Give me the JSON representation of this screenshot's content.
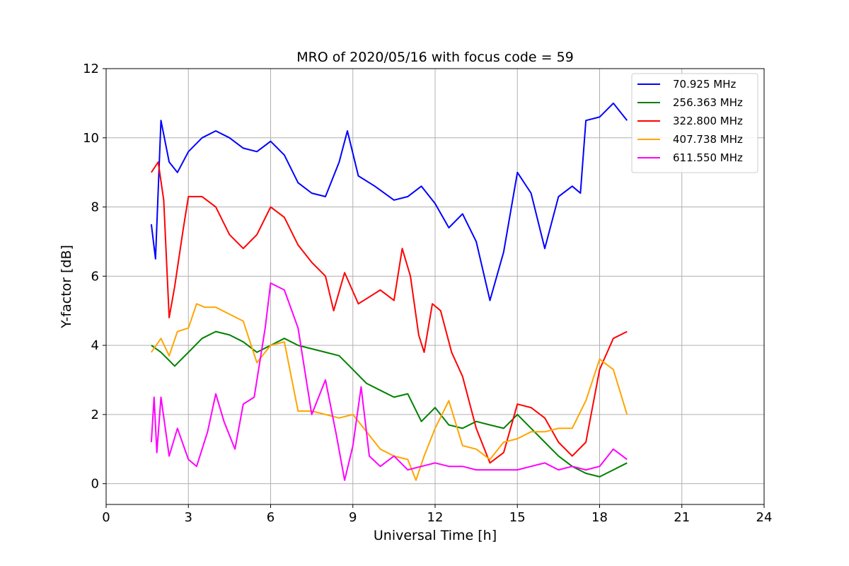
{
  "chart_data": {
    "type": "line",
    "title": "MRO of 2020/05/16 with focus code = 59",
    "xlabel": "Universal Time [h]",
    "ylabel": "Y-factor [dB]",
    "xlim": [
      0,
      24
    ],
    "ylim": [
      -0.6,
      12
    ],
    "xticks": [
      0,
      3,
      6,
      9,
      12,
      15,
      18,
      21,
      24
    ],
    "yticks": [
      0,
      2,
      4,
      6,
      8,
      10,
      12
    ],
    "grid": true,
    "legend_position": "top-right",
    "series": [
      {
        "name": " 70.925 MHz",
        "color": "#0000ff",
        "x": [
          1.65,
          1.8,
          2.0,
          2.3,
          2.6,
          3.0,
          3.5,
          4.0,
          4.5,
          5.0,
          5.5,
          6.0,
          6.5,
          7.0,
          7.5,
          8.0,
          8.5,
          8.8,
          9.2,
          9.8,
          10.5,
          11.0,
          11.5,
          12.0,
          12.5,
          13.0,
          13.5,
          14.0,
          14.5,
          15.0,
          15.5,
          16.0,
          16.5,
          17.0,
          17.3,
          17.5,
          18.0,
          18.5,
          19.0
        ],
        "y": [
          7.5,
          6.5,
          10.5,
          9.3,
          9.0,
          9.6,
          10.0,
          10.2,
          10.0,
          9.7,
          9.6,
          9.9,
          9.5,
          8.7,
          8.4,
          8.3,
          9.3,
          10.2,
          8.9,
          8.6,
          8.2,
          8.3,
          8.6,
          8.1,
          7.4,
          7.8,
          7.0,
          5.3,
          6.7,
          9.0,
          8.4,
          6.8,
          8.3,
          8.6,
          8.4,
          10.5,
          10.6,
          11.0,
          10.5
        ]
      },
      {
        "name": "256.363 MHz",
        "color": "#008000",
        "x": [
          1.65,
          2.0,
          2.5,
          3.0,
          3.5,
          4.0,
          4.5,
          5.0,
          5.5,
          6.0,
          6.5,
          7.0,
          7.5,
          8.0,
          8.5,
          9.0,
          9.5,
          10.0,
          10.5,
          11.0,
          11.5,
          12.0,
          12.5,
          13.0,
          13.5,
          14.0,
          14.5,
          15.0,
          15.5,
          16.0,
          16.5,
          17.0,
          17.5,
          18.0,
          18.5,
          19.0
        ],
        "y": [
          4.0,
          3.8,
          3.4,
          3.8,
          4.2,
          4.4,
          4.3,
          4.1,
          3.8,
          4.0,
          4.2,
          4.0,
          3.9,
          3.8,
          3.7,
          3.3,
          2.9,
          2.7,
          2.5,
          2.6,
          1.8,
          2.2,
          1.7,
          1.6,
          1.8,
          1.7,
          1.6,
          2.0,
          1.6,
          1.2,
          0.8,
          0.5,
          0.3,
          0.2,
          0.4,
          0.6
        ]
      },
      {
        "name": "322.800 MHz",
        "color": "#ff0000",
        "x": [
          1.65,
          1.9,
          2.1,
          2.3,
          2.5,
          2.8,
          3.0,
          3.5,
          4.0,
          4.5,
          5.0,
          5.5,
          6.0,
          6.5,
          7.0,
          7.5,
          8.0,
          8.3,
          8.7,
          9.2,
          9.6,
          10.0,
          10.5,
          10.8,
          11.1,
          11.4,
          11.6,
          11.9,
          12.2,
          12.6,
          13.0,
          13.5,
          14.0,
          14.5,
          15.0,
          15.5,
          16.0,
          16.5,
          17.0,
          17.5,
          18.0,
          18.5,
          19.0
        ],
        "y": [
          9.0,
          9.3,
          8.2,
          4.8,
          5.7,
          7.3,
          8.3,
          8.3,
          8.0,
          7.2,
          6.8,
          7.2,
          8.0,
          7.7,
          6.9,
          6.4,
          6.0,
          5.0,
          6.1,
          5.2,
          5.4,
          5.6,
          5.3,
          6.8,
          6.0,
          4.3,
          3.8,
          5.2,
          5.0,
          3.8,
          3.1,
          1.6,
          0.6,
          0.9,
          2.3,
          2.2,
          1.9,
          1.2,
          0.8,
          1.2,
          3.3,
          4.2,
          4.4
        ]
      },
      {
        "name": "407.738 MHz",
        "color": "#ffa500",
        "x": [
          1.65,
          2.0,
          2.3,
          2.6,
          3.0,
          3.3,
          3.6,
          4.0,
          4.5,
          5.0,
          5.5,
          6.0,
          6.5,
          7.0,
          7.5,
          8.0,
          8.5,
          9.0,
          9.5,
          10.0,
          10.5,
          11.0,
          11.3,
          11.6,
          12.0,
          12.5,
          13.0,
          13.5,
          14.0,
          14.5,
          15.0,
          15.5,
          16.0,
          16.5,
          17.0,
          17.5,
          18.0,
          18.5,
          19.0
        ],
        "y": [
          3.8,
          4.2,
          3.7,
          4.4,
          4.5,
          5.2,
          5.1,
          5.1,
          4.9,
          4.7,
          3.5,
          4.0,
          4.1,
          2.1,
          2.1,
          2.0,
          1.9,
          2.0,
          1.5,
          1.0,
          0.8,
          0.7,
          0.1,
          0.8,
          1.6,
          2.4,
          1.1,
          1.0,
          0.7,
          1.2,
          1.3,
          1.5,
          1.5,
          1.6,
          1.6,
          2.4,
          3.6,
          3.3,
          2.0
        ]
      },
      {
        "name": "611.550 MHz",
        "color": "#ff00ff",
        "x": [
          1.65,
          1.75,
          1.85,
          2.0,
          2.3,
          2.6,
          3.0,
          3.3,
          3.7,
          4.0,
          4.3,
          4.7,
          5.0,
          5.4,
          5.8,
          6.0,
          6.5,
          7.0,
          7.5,
          8.0,
          8.4,
          8.7,
          9.0,
          9.3,
          9.6,
          10.0,
          10.5,
          11.0,
          11.5,
          12.0,
          12.5,
          13.0,
          13.5,
          14.0,
          14.5,
          15.0,
          15.5,
          16.0,
          16.5,
          17.0,
          17.5,
          18.0,
          18.5,
          19.0
        ],
        "y": [
          1.2,
          2.5,
          0.9,
          2.5,
          0.8,
          1.6,
          0.7,
          0.5,
          1.5,
          2.6,
          1.8,
          1.0,
          2.3,
          2.5,
          4.5,
          5.8,
          5.6,
          4.5,
          2.0,
          3.0,
          1.4,
          0.1,
          1.1,
          2.8,
          0.8,
          0.5,
          0.8,
          0.4,
          0.5,
          0.6,
          0.5,
          0.5,
          0.4,
          0.4,
          0.4,
          0.4,
          0.5,
          0.6,
          0.4,
          0.5,
          0.4,
          0.5,
          1.0,
          0.7
        ]
      }
    ]
  }
}
